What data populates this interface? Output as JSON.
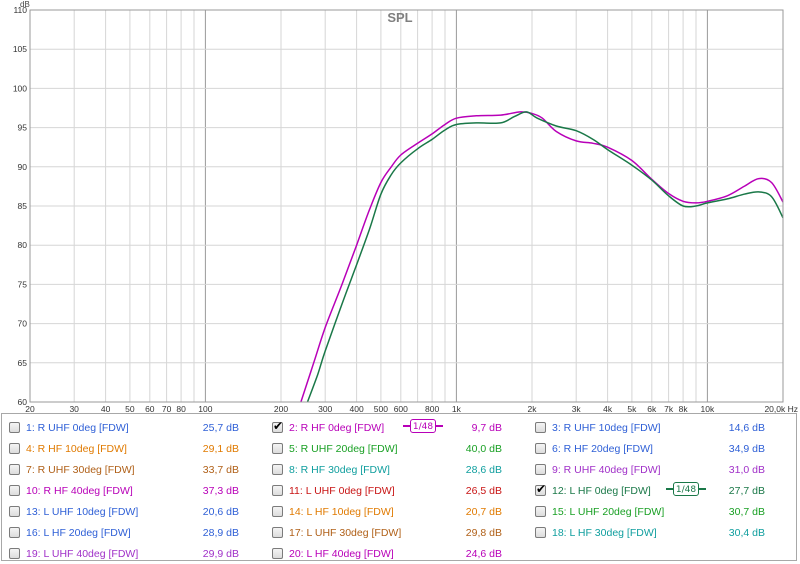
{
  "chart_data": {
    "type": "line",
    "title": "SPL",
    "ylabel": "dB",
    "xlabel": "Hz",
    "x_scale": "log",
    "xlim": [
      20,
      20000
    ],
    "ylim": [
      60,
      110
    ],
    "x_ticks": [
      {
        "v": 20,
        "label": "20"
      },
      {
        "v": 30,
        "label": "30"
      },
      {
        "v": 40,
        "label": "40"
      },
      {
        "v": 50,
        "label": "50"
      },
      {
        "v": 60,
        "label": "60"
      },
      {
        "v": 70,
        "label": "70"
      },
      {
        "v": 80,
        "label": "80"
      },
      {
        "v": 100,
        "label": "100"
      },
      {
        "v": 200,
        "label": "200"
      },
      {
        "v": 300,
        "label": "300"
      },
      {
        "v": 400,
        "label": "400"
      },
      {
        "v": 500,
        "label": "500"
      },
      {
        "v": 600,
        "label": "600"
      },
      {
        "v": 800,
        "label": "800"
      },
      {
        "v": 1000,
        "label": "1k"
      },
      {
        "v": 2000,
        "label": "2k"
      },
      {
        "v": 3000,
        "label": "3k"
      },
      {
        "v": 4000,
        "label": "4k"
      },
      {
        "v": 5000,
        "label": "5k"
      },
      {
        "v": 6000,
        "label": "6k"
      },
      {
        "v": 7000,
        "label": "7k"
      },
      {
        "v": 8000,
        "label": "8k"
      },
      {
        "v": 10000,
        "label": "10k"
      },
      {
        "v": 20000,
        "label": "20,0k Hz"
      }
    ],
    "y_ticks": [
      60,
      65,
      70,
      75,
      80,
      85,
      90,
      95,
      100,
      105,
      110
    ],
    "grid": true,
    "series": [
      {
        "name": "2: R HF 0deg [FDW]",
        "color": "#b800b8",
        "x": [
          240,
          270,
          300,
          350,
          400,
          450,
          500,
          550,
          600,
          700,
          800,
          900,
          1000,
          1200,
          1500,
          1800,
          2000,
          2200,
          2500,
          3000,
          3500,
          4000,
          5000,
          6000,
          7000,
          8000,
          9000,
          10000,
          12000,
          14000,
          16000,
          18000,
          20000
        ],
        "y": [
          60,
          65,
          69.5,
          75,
          80,
          84.5,
          88,
          90,
          91.5,
          93,
          94.2,
          95.4,
          96.2,
          96.5,
          96.6,
          97,
          96.8,
          96.2,
          94.5,
          93.3,
          93,
          92.5,
          90.8,
          88.4,
          86.6,
          85.6,
          85.4,
          85.6,
          86.3,
          87.5,
          88.5,
          88,
          85.5
        ]
      },
      {
        "name": "12: L HF 0deg [FDW]",
        "color": "#1a7848",
        "x": [
          255,
          280,
          300,
          350,
          400,
          450,
          500,
          550,
          600,
          700,
          800,
          900,
          1000,
          1200,
          1500,
          1700,
          1900,
          2100,
          2500,
          3000,
          3500,
          4000,
          5000,
          6000,
          7000,
          8000,
          9000,
          10000,
          12000,
          14000,
          16000,
          18000,
          20000
        ],
        "y": [
          60,
          63.5,
          66.5,
          72.5,
          77.5,
          82,
          86.5,
          89,
          90.5,
          92.3,
          93.5,
          94.7,
          95.4,
          95.6,
          95.6,
          96.4,
          97,
          96.2,
          95.2,
          94.6,
          93.5,
          92.2,
          90.2,
          88.3,
          86.3,
          85.0,
          85.0,
          85.4,
          85.9,
          86.5,
          86.8,
          86.2,
          83.5
        ]
      }
    ]
  },
  "legend": [
    {
      "label": "1: R UHF 0deg [FDW]",
      "value": "25,7 dB",
      "color": "#2e5fd6",
      "checked": false
    },
    {
      "label": "2: R HF 0deg [FDW]",
      "value": "9,7 dB",
      "color": "#b800b8",
      "checked": true,
      "smoothing": "1/48"
    },
    {
      "label": "3: R UHF 10deg [FDW]",
      "value": "14,6 dB",
      "color": "#2e5fd6",
      "checked": false
    },
    {
      "label": "4: R HF 10deg [FDW]",
      "value": "29,1 dB",
      "color": "#e07a00",
      "checked": false
    },
    {
      "label": "5: R UHF 20deg [FDW]",
      "value": "40,0 dB",
      "color": "#19a024",
      "checked": false
    },
    {
      "label": "6: R HF 20deg [FDW]",
      "value": "34,9 dB",
      "color": "#2e5fd6",
      "checked": false
    },
    {
      "label": "7: R UHF 30deg [FDW]",
      "value": "33,7 dB",
      "color": "#b06018",
      "checked": false
    },
    {
      "label": "8: R HF 30deg [FDW]",
      "value": "28,6 dB",
      "color": "#0f9e9e",
      "checked": false
    },
    {
      "label": "9: R UHF 40deg [FDW]",
      "value": "31,0 dB",
      "color": "#a030c8",
      "checked": false
    },
    {
      "label": "10: R HF 40deg [FDW]",
      "value": "37,3 dB",
      "color": "#b800b8",
      "checked": false
    },
    {
      "label": "11: L UHF 0deg [FDW]",
      "value": "26,5 dB",
      "color": "#c81414",
      "checked": false
    },
    {
      "label": "12: L HF 0deg [FDW]",
      "value": "27,7 dB",
      "color": "#1a7848",
      "checked": true,
      "smoothing": "1/48"
    },
    {
      "label": "13: L UHF 10deg [FDW]",
      "value": "20,6 dB",
      "color": "#2e5fd6",
      "checked": false
    },
    {
      "label": "14: L HF 10deg [FDW]",
      "value": "20,7 dB",
      "color": "#e07a00",
      "checked": false
    },
    {
      "label": "15: L UHF 20deg [FDW]",
      "value": "30,7 dB",
      "color": "#19a024",
      "checked": false
    },
    {
      "label": "16: L HF 20deg [FDW]",
      "value": "28,9 dB",
      "color": "#2e5fd6",
      "checked": false
    },
    {
      "label": "17: L UHF 30deg [FDW]",
      "value": "29,8 dB",
      "color": "#b06018",
      "checked": false
    },
    {
      "label": "18: L HF 30deg [FDW]",
      "value": "30,4 dB",
      "color": "#0f9e9e",
      "checked": false
    },
    {
      "label": "19: L UHF 40deg [FDW]",
      "value": "29,9 dB",
      "color": "#a030c8",
      "checked": false
    },
    {
      "label": "20: L HF 40deg [FDW]",
      "value": "24,6 dB",
      "color": "#b800b8",
      "checked": false
    }
  ]
}
